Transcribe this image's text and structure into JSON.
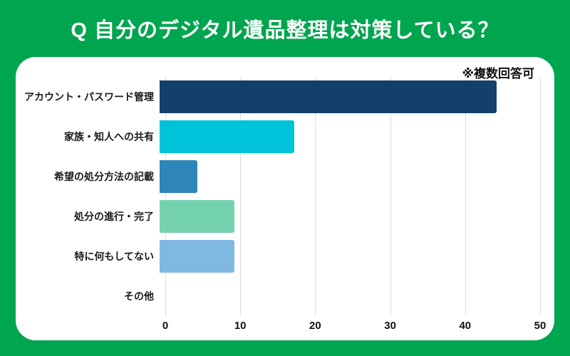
{
  "page": {
    "background_color": "#00A54F",
    "title": "Q 自分のデジタル遺品整理は対策している？"
  },
  "card": {
    "note": "※複数回答可"
  },
  "chart_data": {
    "type": "bar",
    "orientation": "horizontal",
    "title": "Q 自分のデジタル遺品整理は対策している？",
    "annotation": "※複数回答可",
    "categories": [
      "アカウント・パスワード管理",
      "家族・知人への共有",
      "希望の処分方法の記載",
      "処分の進行・完了",
      "特に何もしてない",
      "その他"
    ],
    "values": [
      45,
      18,
      5,
      10,
      10,
      0
    ],
    "bar_colors": [
      "#143F6B",
      "#00C2D8",
      "#2E86B8",
      "#74D2AF",
      "#7FB9E2",
      null
    ],
    "xlabel": "",
    "ylabel": "",
    "xlim": [
      0,
      50
    ],
    "x_ticks": [
      0,
      10,
      20,
      30,
      40,
      50
    ],
    "grid": true,
    "grid_color": "#DDDDDD",
    "legend": false
  }
}
